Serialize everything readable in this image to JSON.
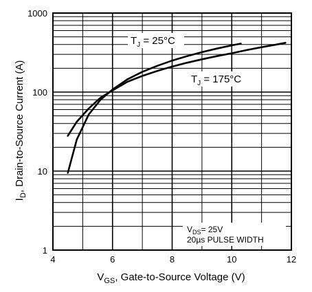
{
  "chart_data": {
    "type": "line",
    "title": "",
    "xlabel": {
      "main": "V",
      "sub": "GS",
      "rest": ", Gate-to-Source Voltage (V)"
    },
    "ylabel": {
      "main": "I",
      "sub": "D",
      "rest": ",  Drain-to-Source Current (A)"
    },
    "xlim": [
      4,
      12
    ],
    "ylim": [
      1,
      1000
    ],
    "yscale": "log",
    "grid": true,
    "x_ticks": [
      "4",
      "6",
      "8",
      "10",
      "12"
    ],
    "y_ticks": [
      "1",
      "10",
      "100",
      "1000"
    ],
    "series": [
      {
        "name": "TJ = 25°C",
        "label_main": "T",
        "label_sub": "J",
        "label_rest": " = 25°C",
        "x": [
          4.5,
          4.8,
          5.2,
          5.6,
          6.0,
          6.5,
          7.0,
          7.5,
          8.0,
          8.5,
          9.0,
          9.5,
          10.0,
          10.3
        ],
        "y": [
          9.5,
          25,
          52,
          80,
          108,
          145,
          180,
          215,
          250,
          285,
          320,
          355,
          390,
          410
        ]
      },
      {
        "name": "TJ = 175°C",
        "label_main": "T",
        "label_sub": "J",
        "label_rest": " = 175°C",
        "x": [
          4.5,
          4.8,
          5.2,
          5.6,
          6.0,
          6.5,
          7.0,
          7.5,
          8.0,
          8.5,
          9.0,
          9.5,
          10.0,
          10.5,
          11.0,
          11.5,
          11.8
        ],
        "y": [
          28,
          42,
          62,
          85,
          105,
          135,
          160,
          185,
          210,
          235,
          260,
          285,
          310,
          340,
          370,
          400,
          420
        ]
      }
    ],
    "notes": {
      "line1_main": "V",
      "line1_sub": "DS",
      "line1_rest": "= 25V",
      "line2": "20µs PULSE WIDTH"
    }
  }
}
